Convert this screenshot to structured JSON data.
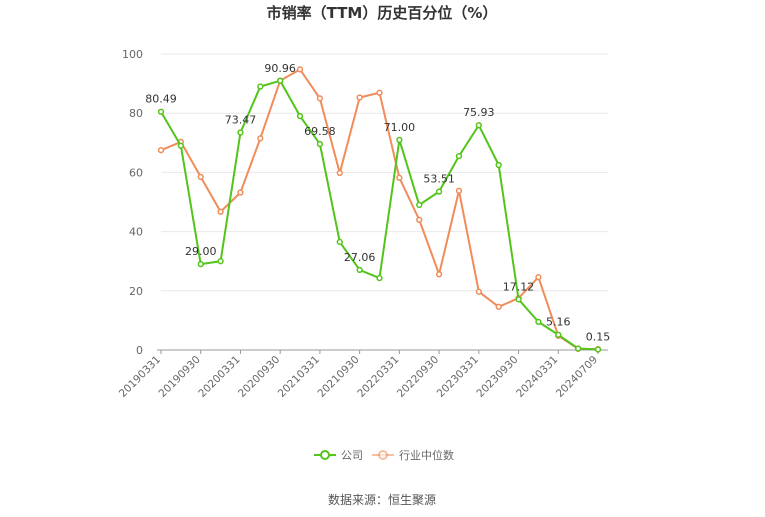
{
  "chart_data": {
    "type": "line",
    "title": "市销率（TTM）历史百分位（%）",
    "source": "数据来源：恒生聚源",
    "ylim": [
      0,
      100
    ],
    "yticks": [
      0,
      20,
      40,
      60,
      80,
      100
    ],
    "grid": true,
    "legend_position": "bottom",
    "x": [
      "20190331",
      "20190630",
      "20190930",
      "20191231",
      "20200331",
      "20200630",
      "20200930",
      "20201231",
      "20210331",
      "20210630",
      "20210930",
      "20211231",
      "20220331",
      "20220630",
      "20220930",
      "20221231",
      "20230331",
      "20230630",
      "20230930",
      "20231231",
      "20240331",
      "20240630",
      "20240709"
    ],
    "x_tick_labels": [
      "20190331",
      "20190930",
      "20200331",
      "20200930",
      "20210331",
      "20210930",
      "20220331",
      "20220930",
      "20230331",
      "20230930",
      "20240331",
      "20240709"
    ],
    "series": [
      {
        "name": "公司",
        "color": "#52c41a",
        "values": [
          80.49,
          69,
          29.0,
          30,
          73.47,
          89,
          90.96,
          79,
          69.58,
          36.5,
          27.06,
          24.3,
          71.0,
          49,
          53.51,
          65.5,
          75.93,
          62.5,
          17.12,
          9.5,
          5.16,
          0.5,
          0.15
        ]
      },
      {
        "name": "行业中位数",
        "color": "#f08c5a",
        "values": [
          67.5,
          70.3,
          58.5,
          46.7,
          53.2,
          71.5,
          91.0,
          94.8,
          85.0,
          59.8,
          85.3,
          86.9,
          58.2,
          44.0,
          25.6,
          53.8,
          19.7,
          14.6,
          17.5,
          24.6,
          4.8,
          0.4,
          0.3
        ]
      }
    ],
    "data_labels": [
      {
        "series": 0,
        "index": 0,
        "text": "80.49"
      },
      {
        "series": 0,
        "index": 2,
        "text": "29.00"
      },
      {
        "series": 0,
        "index": 4,
        "text": "73.47"
      },
      {
        "series": 0,
        "index": 6,
        "text": "90.96"
      },
      {
        "series": 0,
        "index": 8,
        "text": "69.58"
      },
      {
        "series": 0,
        "index": 10,
        "text": "27.06"
      },
      {
        "series": 0,
        "index": 12,
        "text": "71.00"
      },
      {
        "series": 0,
        "index": 14,
        "text": "53.51"
      },
      {
        "series": 0,
        "index": 16,
        "text": "75.93"
      },
      {
        "series": 0,
        "index": 18,
        "text": "17.12"
      },
      {
        "series": 0,
        "index": 20,
        "text": "5.16"
      },
      {
        "series": 0,
        "index": 22,
        "text": "0.15"
      }
    ]
  }
}
